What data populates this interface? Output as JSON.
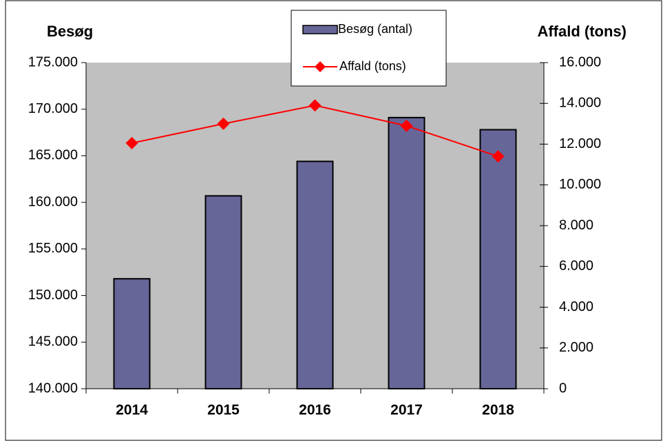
{
  "chart_data": {
    "type": "bar-line",
    "y_title": "Besøg",
    "y2_title": "Affald (tons)",
    "categories": [
      "2014",
      "2015",
      "2016",
      "2017",
      "2018"
    ],
    "series": [
      {
        "name": "Besøg (antal)",
        "type": "bar",
        "color": "#666699",
        "values": [
          151800,
          160700,
          164400,
          169100,
          167800
        ]
      },
      {
        "name": "Affald (tons)",
        "type": "line",
        "axis": "y2",
        "color": "#ff0000",
        "values": [
          12050,
          13000,
          13900,
          12900,
          11400
        ]
      }
    ],
    "ylim": [
      140000,
      175000
    ],
    "yticks": [
      {
        "value": 140000,
        "label": "140.000"
      },
      {
        "value": 145000,
        "label": "145.000"
      },
      {
        "value": 150000,
        "label": "150.000"
      },
      {
        "value": 155000,
        "label": "155.000"
      },
      {
        "value": 160000,
        "label": "160.000"
      },
      {
        "value": 165000,
        "label": "165.000"
      },
      {
        "value": 170000,
        "label": "170.000"
      },
      {
        "value": 175000,
        "label": "175.000"
      }
    ],
    "y2lim": [
      0,
      16000
    ],
    "y2ticks": [
      0,
      {
        "value": 2000,
        "label": "2.000"
      },
      {
        "value": 4000,
        "label": "4.000"
      },
      {
        "value": 6000,
        "label": "6.000"
      },
      {
        "value": 8000,
        "label": "8.000"
      },
      {
        "value": 10000,
        "label": "10.000"
      },
      {
        "value": 12000,
        "label": "12.000"
      },
      {
        "value": 14000,
        "label": "14.000"
      },
      {
        "value": 16000,
        "label": "16.000"
      }
    ],
    "plot_background": "#c0c0c0"
  }
}
